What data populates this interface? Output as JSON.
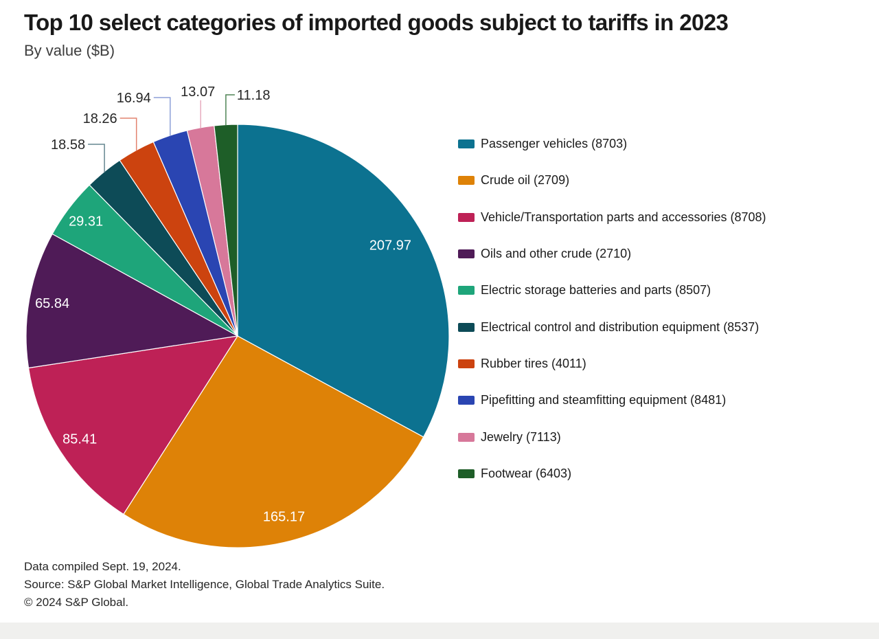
{
  "footer": {
    "line1": "Data compiled Sept. 19, 2024.",
    "line2": "Source: S&P Global Market Intelligence, Global Trade Analytics Suite.",
    "line3": "© 2024 S&P Global."
  },
  "chart_data": {
    "type": "pie",
    "title": "Top 10 select categories of imported goods subject to tariffs in 2023",
    "subtitle": "By value ($B)",
    "unit": "$B",
    "start_angle": "12 o'clock",
    "direction": "clockwise",
    "legend_position": "right",
    "inside_value_label_color": "#ffffff",
    "callout_value_label_color": "#262626",
    "slices": [
      {
        "label": "Passenger vehicles",
        "hs_code": "8703",
        "legend_label": "Passenger vehicles (8703)",
        "value": 207.97,
        "value_label": "207.97",
        "color": "#0c7290",
        "value_label_placement": "inside"
      },
      {
        "label": "Crude oil",
        "hs_code": "2709",
        "legend_label": "Crude oil (2709)",
        "value": 165.17,
        "value_label": "165.17",
        "color": "#de8207",
        "value_label_placement": "inside"
      },
      {
        "label": "Vehicle/Transportation parts and accessories",
        "hs_code": "8708",
        "legend_label": "Vehicle/Transportation parts and accessories (8708)",
        "value": 85.41,
        "value_label": "85.41",
        "color": "#be2156",
        "value_label_placement": "inside"
      },
      {
        "label": "Oils and other crude",
        "hs_code": "2710",
        "legend_label": "Oils and other crude (2710)",
        "value": 65.84,
        "value_label": "65.84",
        "color": "#4f1b57",
        "value_label_placement": "inside"
      },
      {
        "label": "Electric storage batteries and parts",
        "hs_code": "8507",
        "legend_label": "Electric storage batteries and parts (8507)",
        "value": 29.31,
        "value_label": "29.31",
        "color": "#1ea57a",
        "value_label_placement": "inside"
      },
      {
        "label": "Electrical control and distribution equipment",
        "hs_code": "8537",
        "legend_label": "Electrical control and distribution equipment (8537)",
        "value": 18.58,
        "value_label": "18.58",
        "color": "#0d4b57",
        "value_label_placement": "callout",
        "callout_line_color": "#64868f"
      },
      {
        "label": "Rubber tires",
        "hs_code": "4011",
        "legend_label": "Rubber tires (4011)",
        "value": 18.26,
        "value_label": "18.26",
        "color": "#cc430f",
        "value_label_placement": "callout",
        "callout_line_color": "#e2836f"
      },
      {
        "label": "Pipefitting and steamfitting equipment",
        "hs_code": "8481",
        "legend_label": "Pipefitting and steamfitting equipment (8481)",
        "value": 16.94,
        "value_label": "16.94",
        "color": "#2a45b2",
        "value_label_placement": "callout",
        "callout_line_color": "#8d9fd9"
      },
      {
        "label": "Jewelry",
        "hs_code": "7113",
        "legend_label": "Jewelry (7113)",
        "value": 13.07,
        "value_label": "13.07",
        "color": "#d7789a",
        "value_label_placement": "callout",
        "callout_line_color": "#e7abbe"
      },
      {
        "label": "Footwear",
        "hs_code": "6403",
        "legend_label": "Footwear (6403)",
        "value": 11.18,
        "value_label": "11.18",
        "color": "#1e5e28",
        "value_label_placement": "callout",
        "callout_line_color": "#4e8455"
      }
    ]
  }
}
